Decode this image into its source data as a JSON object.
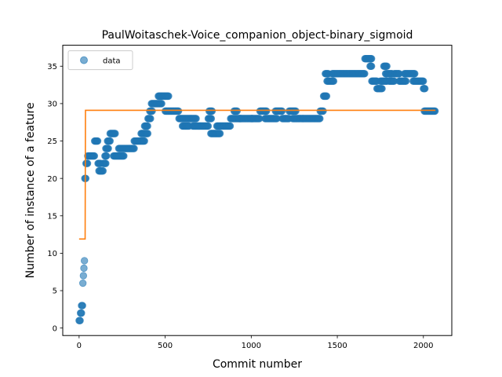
{
  "chart_data": {
    "type": "scatter",
    "title": "PaulWoitaschek-Voice_companion_object-binary_sigmoid",
    "xlabel": "Commit number",
    "ylabel": "Number of instance of a feature",
    "xlim": [
      -95,
      2165
    ],
    "ylim": [
      -1,
      37.8
    ],
    "xticks": [
      0,
      500,
      1000,
      1500,
      2000
    ],
    "yticks": [
      0,
      5,
      10,
      15,
      20,
      25,
      30,
      35
    ],
    "grid": false,
    "legend": {
      "placement": "top-left",
      "entries": [
        "data"
      ]
    },
    "colors": {
      "data": "#1f77b4",
      "fit": "#ff7f0e"
    },
    "series": [
      {
        "name": "data",
        "kind": "scatter",
        "segments": [
          [
            0,
            8,
            1
          ],
          [
            8,
            14,
            2
          ],
          [
            14,
            20,
            3
          ],
          [
            22,
            24,
            6
          ],
          [
            25,
            27,
            7
          ],
          [
            28,
            30,
            8
          ],
          [
            31,
            33,
            9
          ],
          [
            33,
            40,
            20
          ],
          [
            40,
            50,
            22
          ],
          [
            50,
            90,
            23
          ],
          [
            90,
            110,
            25
          ],
          [
            110,
            125,
            22
          ],
          [
            115,
            140,
            21
          ],
          [
            140,
            155,
            22
          ],
          [
            150,
            160,
            23
          ],
          [
            155,
            170,
            24
          ],
          [
            165,
            180,
            25
          ],
          [
            180,
            210,
            26
          ],
          [
            200,
            260,
            23
          ],
          [
            230,
            320,
            24
          ],
          [
            320,
            380,
            25
          ],
          [
            360,
            400,
            26
          ],
          [
            380,
            400,
            27
          ],
          [
            400,
            415,
            28
          ],
          [
            410,
            425,
            29
          ],
          [
            420,
            480,
            30
          ],
          [
            460,
            520,
            31
          ],
          [
            500,
            580,
            29
          ],
          [
            580,
            650,
            28
          ],
          [
            600,
            640,
            27
          ],
          [
            650,
            680,
            28
          ],
          [
            660,
            750,
            27
          ],
          [
            750,
            770,
            28
          ],
          [
            755,
            775,
            29
          ],
          [
            765,
            820,
            26
          ],
          [
            800,
            880,
            27
          ],
          [
            880,
            940,
            28
          ],
          [
            900,
            920,
            29
          ],
          [
            930,
            1010,
            28
          ],
          [
            1000,
            1050,
            28
          ],
          [
            1050,
            1090,
            29
          ],
          [
            1080,
            1150,
            28
          ],
          [
            1140,
            1180,
            29
          ],
          [
            1180,
            1220,
            28
          ],
          [
            1220,
            1260,
            29
          ],
          [
            1240,
            1300,
            28
          ],
          [
            1300,
            1400,
            28
          ],
          [
            1400,
            1420,
            29
          ],
          [
            1420,
            1440,
            31
          ],
          [
            1430,
            1450,
            34
          ],
          [
            1440,
            1480,
            33
          ],
          [
            1470,
            1660,
            34
          ],
          [
            1660,
            1700,
            36
          ],
          [
            1690,
            1700,
            35
          ],
          [
            1700,
            1730,
            33
          ],
          [
            1730,
            1760,
            32
          ],
          [
            1750,
            1790,
            33
          ],
          [
            1770,
            1790,
            35
          ],
          [
            1780,
            1820,
            34
          ],
          [
            1800,
            1830,
            33
          ],
          [
            1830,
            1860,
            34
          ],
          [
            1860,
            1900,
            33
          ],
          [
            1890,
            1950,
            34
          ],
          [
            1940,
            2000,
            33
          ],
          [
            2000,
            2010,
            32
          ],
          [
            2005,
            2070,
            29
          ]
        ]
      },
      {
        "name": "fit",
        "kind": "line",
        "points": [
          [
            0,
            11.9
          ],
          [
            35,
            11.9
          ],
          [
            37,
            29.1
          ],
          [
            2070,
            29.1
          ]
        ]
      }
    ]
  }
}
